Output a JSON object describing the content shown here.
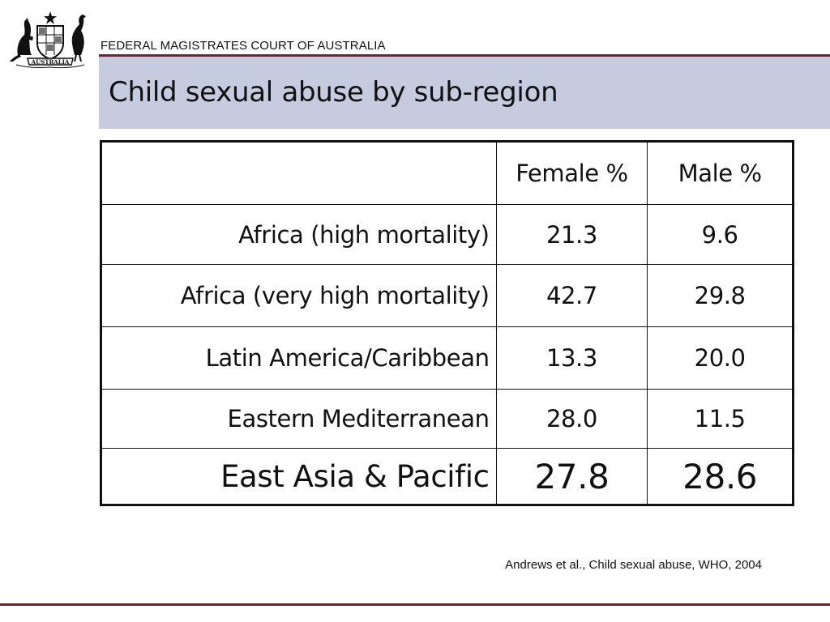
{
  "header": {
    "court_name": "FEDERAL MAGISTRATES COURT OF AUSTRALIA",
    "crest_label": "AUSTRALIA",
    "crest_icon": "coat-of-arms-icon"
  },
  "slide": {
    "title": "Child sexual abuse by sub-region"
  },
  "table": {
    "columns": [
      "",
      "Female %",
      "Male %"
    ],
    "rows": [
      {
        "region": "Africa (high mortality)",
        "female": "21.3",
        "male": "9.6"
      },
      {
        "region": "Africa (very high mortality)",
        "female": "42.7",
        "male": "29.8"
      },
      {
        "region": "Latin America/Caribbean",
        "female": "13.3",
        "male": "20.0"
      },
      {
        "region": "Eastern Mediterranean",
        "female": "28.0",
        "male": "11.5"
      },
      {
        "region": "East Asia & Pacific",
        "female": "27.8",
        "male": "28.6"
      }
    ]
  },
  "citation": "Andrews et al., Child sexual abuse, WHO, 2004",
  "colors": {
    "accent_rule": "#7a1e2e",
    "title_band": "#c6cbe0"
  }
}
